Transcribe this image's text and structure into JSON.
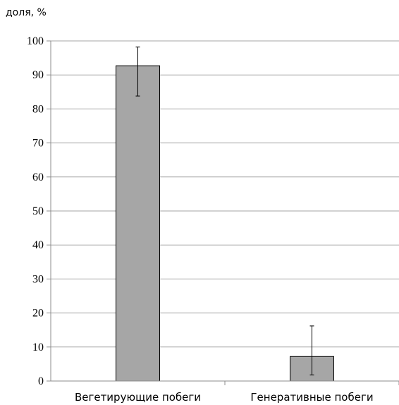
{
  "chart_data": {
    "type": "bar",
    "title": "",
    "ylabel": "доля, %",
    "xlabel": "",
    "categories": [
      "Вегетирующие побеги",
      "Генеративные побеги"
    ],
    "series": [
      {
        "values": [
          92.7,
          7.2
        ],
        "error_upper": [
          98.2,
          16.2
        ],
        "error_lower": [
          83.8,
          1.8
        ]
      }
    ],
    "ylim": [
      0,
      100
    ],
    "yticks": [
      0,
      10,
      20,
      30,
      40,
      50,
      60,
      70,
      80,
      90,
      100
    ],
    "grid": true,
    "bar_color": "#a6a6a6"
  }
}
